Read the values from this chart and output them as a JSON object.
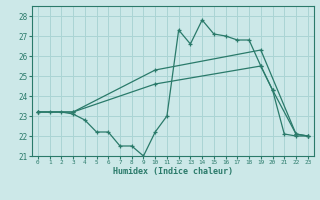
{
  "xlabel": "Humidex (Indice chaleur)",
  "xlim": [
    -0.5,
    23.5
  ],
  "ylim": [
    21.0,
    28.5
  ],
  "yticks": [
    21,
    22,
    23,
    24,
    25,
    26,
    27,
    28
  ],
  "xticks": [
    0,
    1,
    2,
    3,
    4,
    5,
    6,
    7,
    8,
    9,
    10,
    11,
    12,
    13,
    14,
    15,
    16,
    17,
    18,
    19,
    20,
    21,
    22,
    23
  ],
  "bg_color": "#cce8e8",
  "line_color": "#2a7a6a",
  "grid_color": "#aad4d4",
  "series": [
    {
      "x": [
        0,
        1,
        2,
        3,
        4,
        5,
        6,
        7,
        8,
        9,
        10,
        11,
        12,
        13,
        14,
        15,
        16,
        17,
        18,
        19,
        20,
        21,
        22,
        23
      ],
      "y": [
        23.2,
        23.2,
        23.2,
        23.1,
        22.8,
        22.2,
        22.2,
        21.5,
        21.5,
        21.0,
        22.2,
        23.0,
        27.3,
        26.6,
        27.8,
        27.1,
        27.0,
        26.8,
        26.8,
        25.5,
        24.3,
        22.1,
        22.0,
        22.0
      ]
    },
    {
      "x": [
        0,
        3,
        10,
        19,
        20,
        22,
        23
      ],
      "y": [
        23.2,
        23.2,
        24.6,
        25.5,
        24.3,
        22.1,
        22.0
      ]
    },
    {
      "x": [
        0,
        3,
        10,
        19,
        22,
        23
      ],
      "y": [
        23.2,
        23.2,
        25.3,
        26.3,
        22.1,
        22.0
      ]
    }
  ],
  "ytick_fontsize": 5.5,
  "xtick_fontsize": 4.3,
  "xlabel_fontsize": 6.0
}
